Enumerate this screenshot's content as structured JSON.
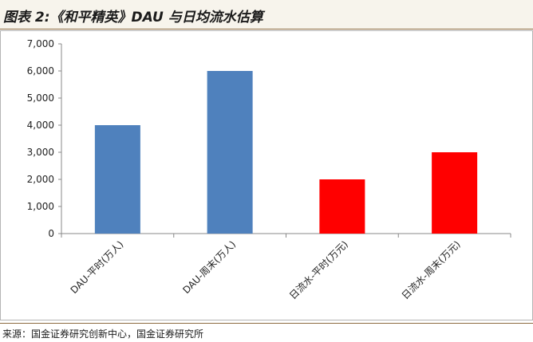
{
  "header": {
    "title": "图表 2:《和平精英》DAU 与日均流水估算"
  },
  "footer": {
    "source": "来源：国金证券研究创新中心，国金证券研究所"
  },
  "chart_data": {
    "type": "bar",
    "categories": [
      "DAU-平时(万人)",
      "DAU-周末(万人)",
      "日流水-平时(万元)",
      "日流水-周末(万元)"
    ],
    "values": [
      4000,
      6000,
      2000,
      3000
    ],
    "bar_colors": [
      "#4f81bd",
      "#4f81bd",
      "#ff0000",
      "#ff0000"
    ],
    "ylim": [
      0,
      7000
    ],
    "yticks": [
      "0",
      "1,000",
      "2,000",
      "3,000",
      "4,000",
      "5,000",
      "6,000",
      "7,000"
    ],
    "grid": false,
    "title": "",
    "xlabel": "",
    "ylabel": ""
  }
}
